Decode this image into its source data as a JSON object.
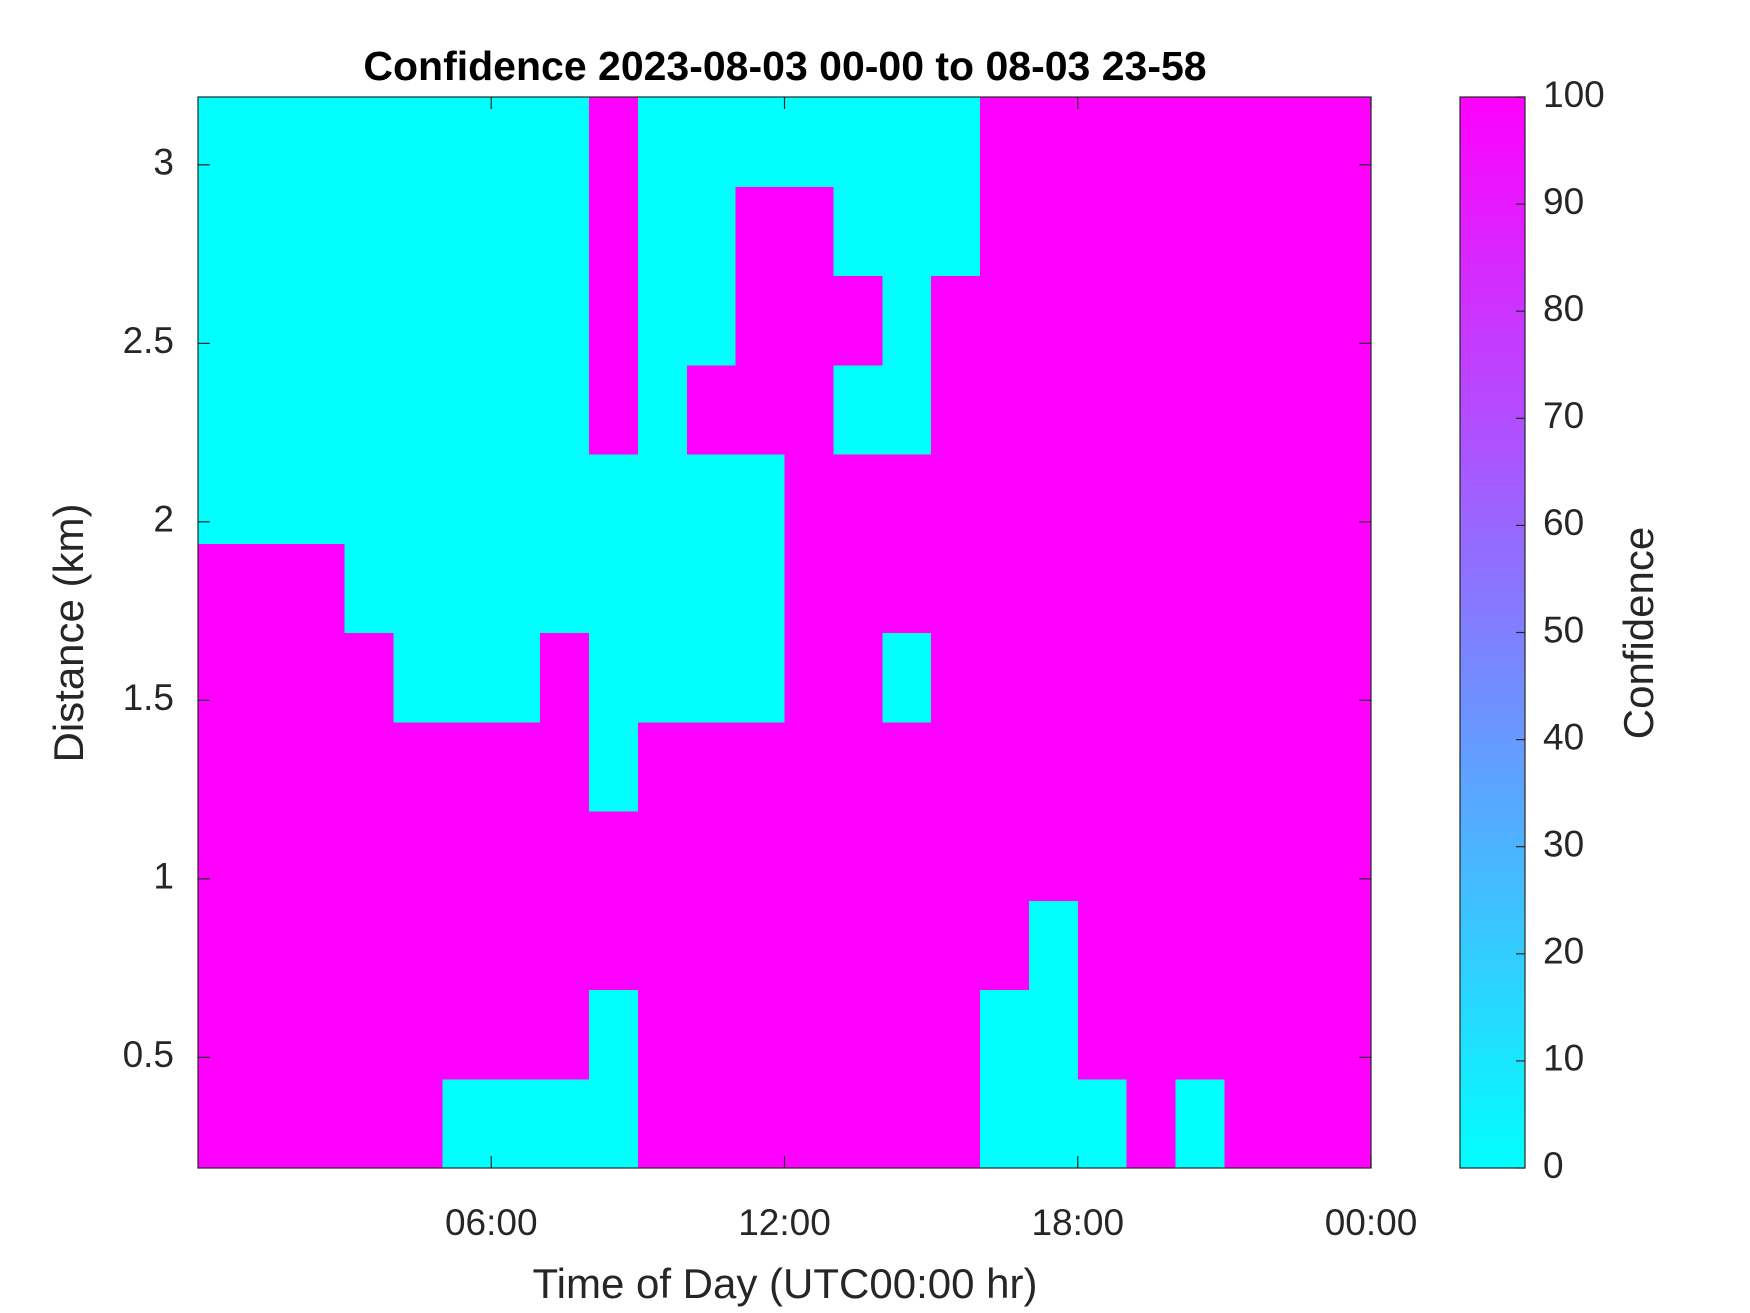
{
  "chart_data": {
    "type": "heatmap",
    "title": "Confidence 2023-08-03 00-00 to 08-03 23-58",
    "xlabel": "Time of Day (UTC00:00 hr)",
    "ylabel": "Distance (km)",
    "colorbar_label": "Confidence",
    "xbins": [
      0,
      1,
      2,
      3,
      4,
      5,
      6,
      7,
      8,
      9,
      10,
      11,
      12,
      13,
      14,
      15,
      16,
      17,
      18,
      19,
      20,
      21,
      22,
      23,
      24
    ],
    "ybins": [
      0.19,
      0.44,
      0.69,
      0.94,
      1.19,
      1.44,
      1.69,
      1.94,
      2.19,
      2.44,
      2.69,
      2.94,
      3.19
    ],
    "z": [
      [
        100,
        100,
        100,
        100,
        100,
        0,
        0,
        0,
        0,
        100,
        100,
        100,
        100,
        100,
        100,
        100,
        0,
        0,
        0,
        100,
        0,
        100,
        100,
        100
      ],
      [
        100,
        100,
        100,
        100,
        100,
        100,
        100,
        100,
        0,
        100,
        100,
        100,
        100,
        100,
        100,
        100,
        0,
        0,
        100,
        100,
        100,
        100,
        100,
        100
      ],
      [
        100,
        100,
        100,
        100,
        100,
        100,
        100,
        100,
        100,
        100,
        100,
        100,
        100,
        100,
        100,
        100,
        100,
        0,
        100,
        100,
        100,
        100,
        100,
        100
      ],
      [
        100,
        100,
        100,
        100,
        100,
        100,
        100,
        100,
        100,
        100,
        100,
        100,
        100,
        100,
        100,
        100,
        100,
        100,
        100,
        100,
        100,
        100,
        100,
        100
      ],
      [
        100,
        100,
        100,
        100,
        100,
        100,
        100,
        100,
        0,
        100,
        100,
        100,
        100,
        100,
        100,
        100,
        100,
        100,
        100,
        100,
        100,
        100,
        100,
        100
      ],
      [
        100,
        100,
        100,
        100,
        0,
        0,
        0,
        100,
        0,
        0,
        0,
        0,
        100,
        100,
        0,
        100,
        100,
        100,
        100,
        100,
        100,
        100,
        100,
        100
      ],
      [
        100,
        100,
        100,
        0,
        0,
        0,
        0,
        0,
        0,
        0,
        0,
        0,
        100,
        100,
        100,
        100,
        100,
        100,
        100,
        100,
        100,
        100,
        100,
        100
      ],
      [
        0,
        0,
        0,
        0,
        0,
        0,
        0,
        0,
        0,
        0,
        0,
        0,
        100,
        100,
        100,
        100,
        100,
        100,
        100,
        100,
        100,
        100,
        100,
        100
      ],
      [
        0,
        0,
        0,
        0,
        0,
        0,
        0,
        0,
        100,
        0,
        100,
        100,
        100,
        0,
        0,
        100,
        100,
        100,
        100,
        100,
        100,
        100,
        100,
        100
      ],
      [
        0,
        0,
        0,
        0,
        0,
        0,
        0,
        0,
        100,
        0,
        0,
        100,
        100,
        100,
        0,
        100,
        100,
        100,
        100,
        100,
        100,
        100,
        100,
        100
      ],
      [
        0,
        0,
        0,
        0,
        0,
        0,
        0,
        0,
        100,
        0,
        0,
        100,
        100,
        0,
        0,
        0,
        100,
        100,
        100,
        100,
        100,
        100,
        100,
        100
      ],
      [
        0,
        0,
        0,
        0,
        0,
        0,
        0,
        0,
        100,
        0,
        0,
        0,
        0,
        0,
        0,
        0,
        100,
        100,
        100,
        100,
        100,
        100,
        100,
        100
      ]
    ],
    "xlim": [
      0,
      24
    ],
    "xticks": [
      {
        "value": 6,
        "label": "06:00"
      },
      {
        "value": 12,
        "label": "12:00"
      },
      {
        "value": 18,
        "label": "18:00"
      },
      {
        "value": 24,
        "label": "00:00"
      }
    ],
    "ylim": [
      0.19,
      3.19
    ],
    "yticks": [
      0.5,
      1,
      1.5,
      2,
      2.5,
      3
    ],
    "clim": [
      0,
      100
    ],
    "cticks": [
      0,
      10,
      20,
      30,
      40,
      50,
      60,
      70,
      80,
      90,
      100
    ],
    "colormap": [
      "#00ffff",
      "#ff00ff"
    ]
  }
}
